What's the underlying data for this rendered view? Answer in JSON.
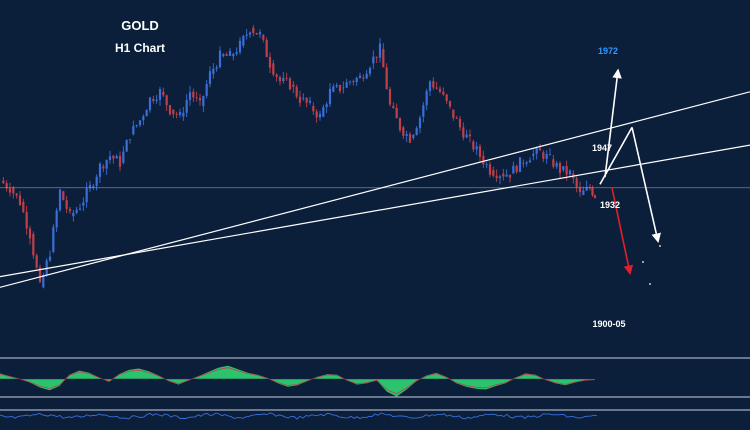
{
  "chart_data": {
    "type": "line",
    "title": "GOLD",
    "subtitle": "H1 Chart",
    "instrument": "GOLD",
    "timeframe": "H1",
    "price_scale": [
      1895,
      1985
    ],
    "series": [
      {
        "x": [
          0,
          10,
          20,
          30,
          40,
          50,
          60,
          70,
          80,
          90,
          100,
          110,
          120,
          130,
          140,
          150,
          160,
          170,
          180,
          190,
          200,
          210,
          220,
          230,
          240,
          250,
          260,
          270,
          280,
          290,
          300,
          310,
          320,
          330,
          340,
          350,
          360,
          370,
          380,
          390,
          400,
          410,
          420,
          430,
          440,
          450,
          460,
          470,
          480,
          490,
          500,
          510,
          520,
          530,
          540,
          550,
          560,
          570,
          580,
          590,
          595
        ],
        "y": [
          1937,
          1935,
          1931,
          1922,
          1907,
          1917,
          1934,
          1927,
          1930,
          1935,
          1941,
          1944,
          1942,
          1950,
          1954,
          1960,
          1962,
          1957,
          1955,
          1962,
          1958,
          1967,
          1972,
          1972,
          1975,
          1980,
          1978,
          1970,
          1965,
          1964,
          1960,
          1958,
          1955,
          1962,
          1963,
          1965,
          1966,
          1970,
          1974,
          1958,
          1952,
          1949,
          1955,
          1965,
          1962,
          1957,
          1952,
          1948,
          1944,
          1940,
          1939,
          1939,
          1942,
          1944,
          1945,
          1943,
          1940,
          1939,
          1933,
          1935,
          1933
        ]
      }
    ],
    "oscillator": {
      "values": [
        0.8,
        0.4,
        0.0,
        -0.5,
        -1.2,
        -1.6,
        -1.0,
        0.6,
        1.2,
        0.9,
        0.2,
        -0.4,
        0.7,
        1.3,
        1.5,
        1.1,
        0.5,
        -0.3,
        -0.8,
        -0.2,
        0.4,
        1.0,
        1.6,
        1.9,
        1.4,
        0.9,
        0.6,
        0.1,
        -0.6,
        -1.1,
        -0.9,
        -0.3,
        0.3,
        0.7,
        0.6,
        -0.2,
        -0.8,
        -0.6,
        -0.2,
        -1.8,
        -2.5,
        -1.5,
        -0.3,
        0.5,
        0.9,
        0.3,
        -0.6,
        -1.1,
        -1.4,
        -1.5,
        -1.0,
        -0.6,
        0.2,
        0.8,
        0.6,
        -0.1,
        -0.6,
        -0.9,
        -0.5,
        -0.2,
        -0.1
      ],
      "color": "#2ecc71"
    },
    "trendlines": [
      {
        "from": [
          0,
          1907
        ],
        "to": [
          750,
          1962
        ],
        "color": "#ffffff"
      },
      {
        "from": [
          0,
          1910
        ],
        "to": [
          750,
          1947
        ],
        "color": "#ffffff"
      }
    ],
    "horizontal_level": 1935,
    "projections": [
      {
        "label": "1972",
        "from": [
          605,
          1938
        ],
        "to": [
          618,
          1968
        ],
        "color": "#ffffff",
        "label_color": "#3399ff"
      },
      {
        "label": "1947",
        "from": [
          600,
          1936
        ],
        "to": [
          632,
          1952
        ],
        "color": "#ffffff",
        "label_color": "#ffffff"
      },
      {
        "label": "1932",
        "from": [
          632,
          1952
        ],
        "to": [
          658,
          1920
        ],
        "color": "#ffffff",
        "label_color": "#ffffff"
      },
      {
        "label": "1900-05",
        "from": [
          612,
          1935
        ],
        "to": [
          630,
          1911
        ],
        "color": "#e0202a",
        "label_color": "#ffffff"
      }
    ],
    "colors": {
      "background": "#0b1e3a",
      "bull": "#3a6fd8",
      "bear": "#c0404a",
      "text": "#ffffff"
    }
  }
}
